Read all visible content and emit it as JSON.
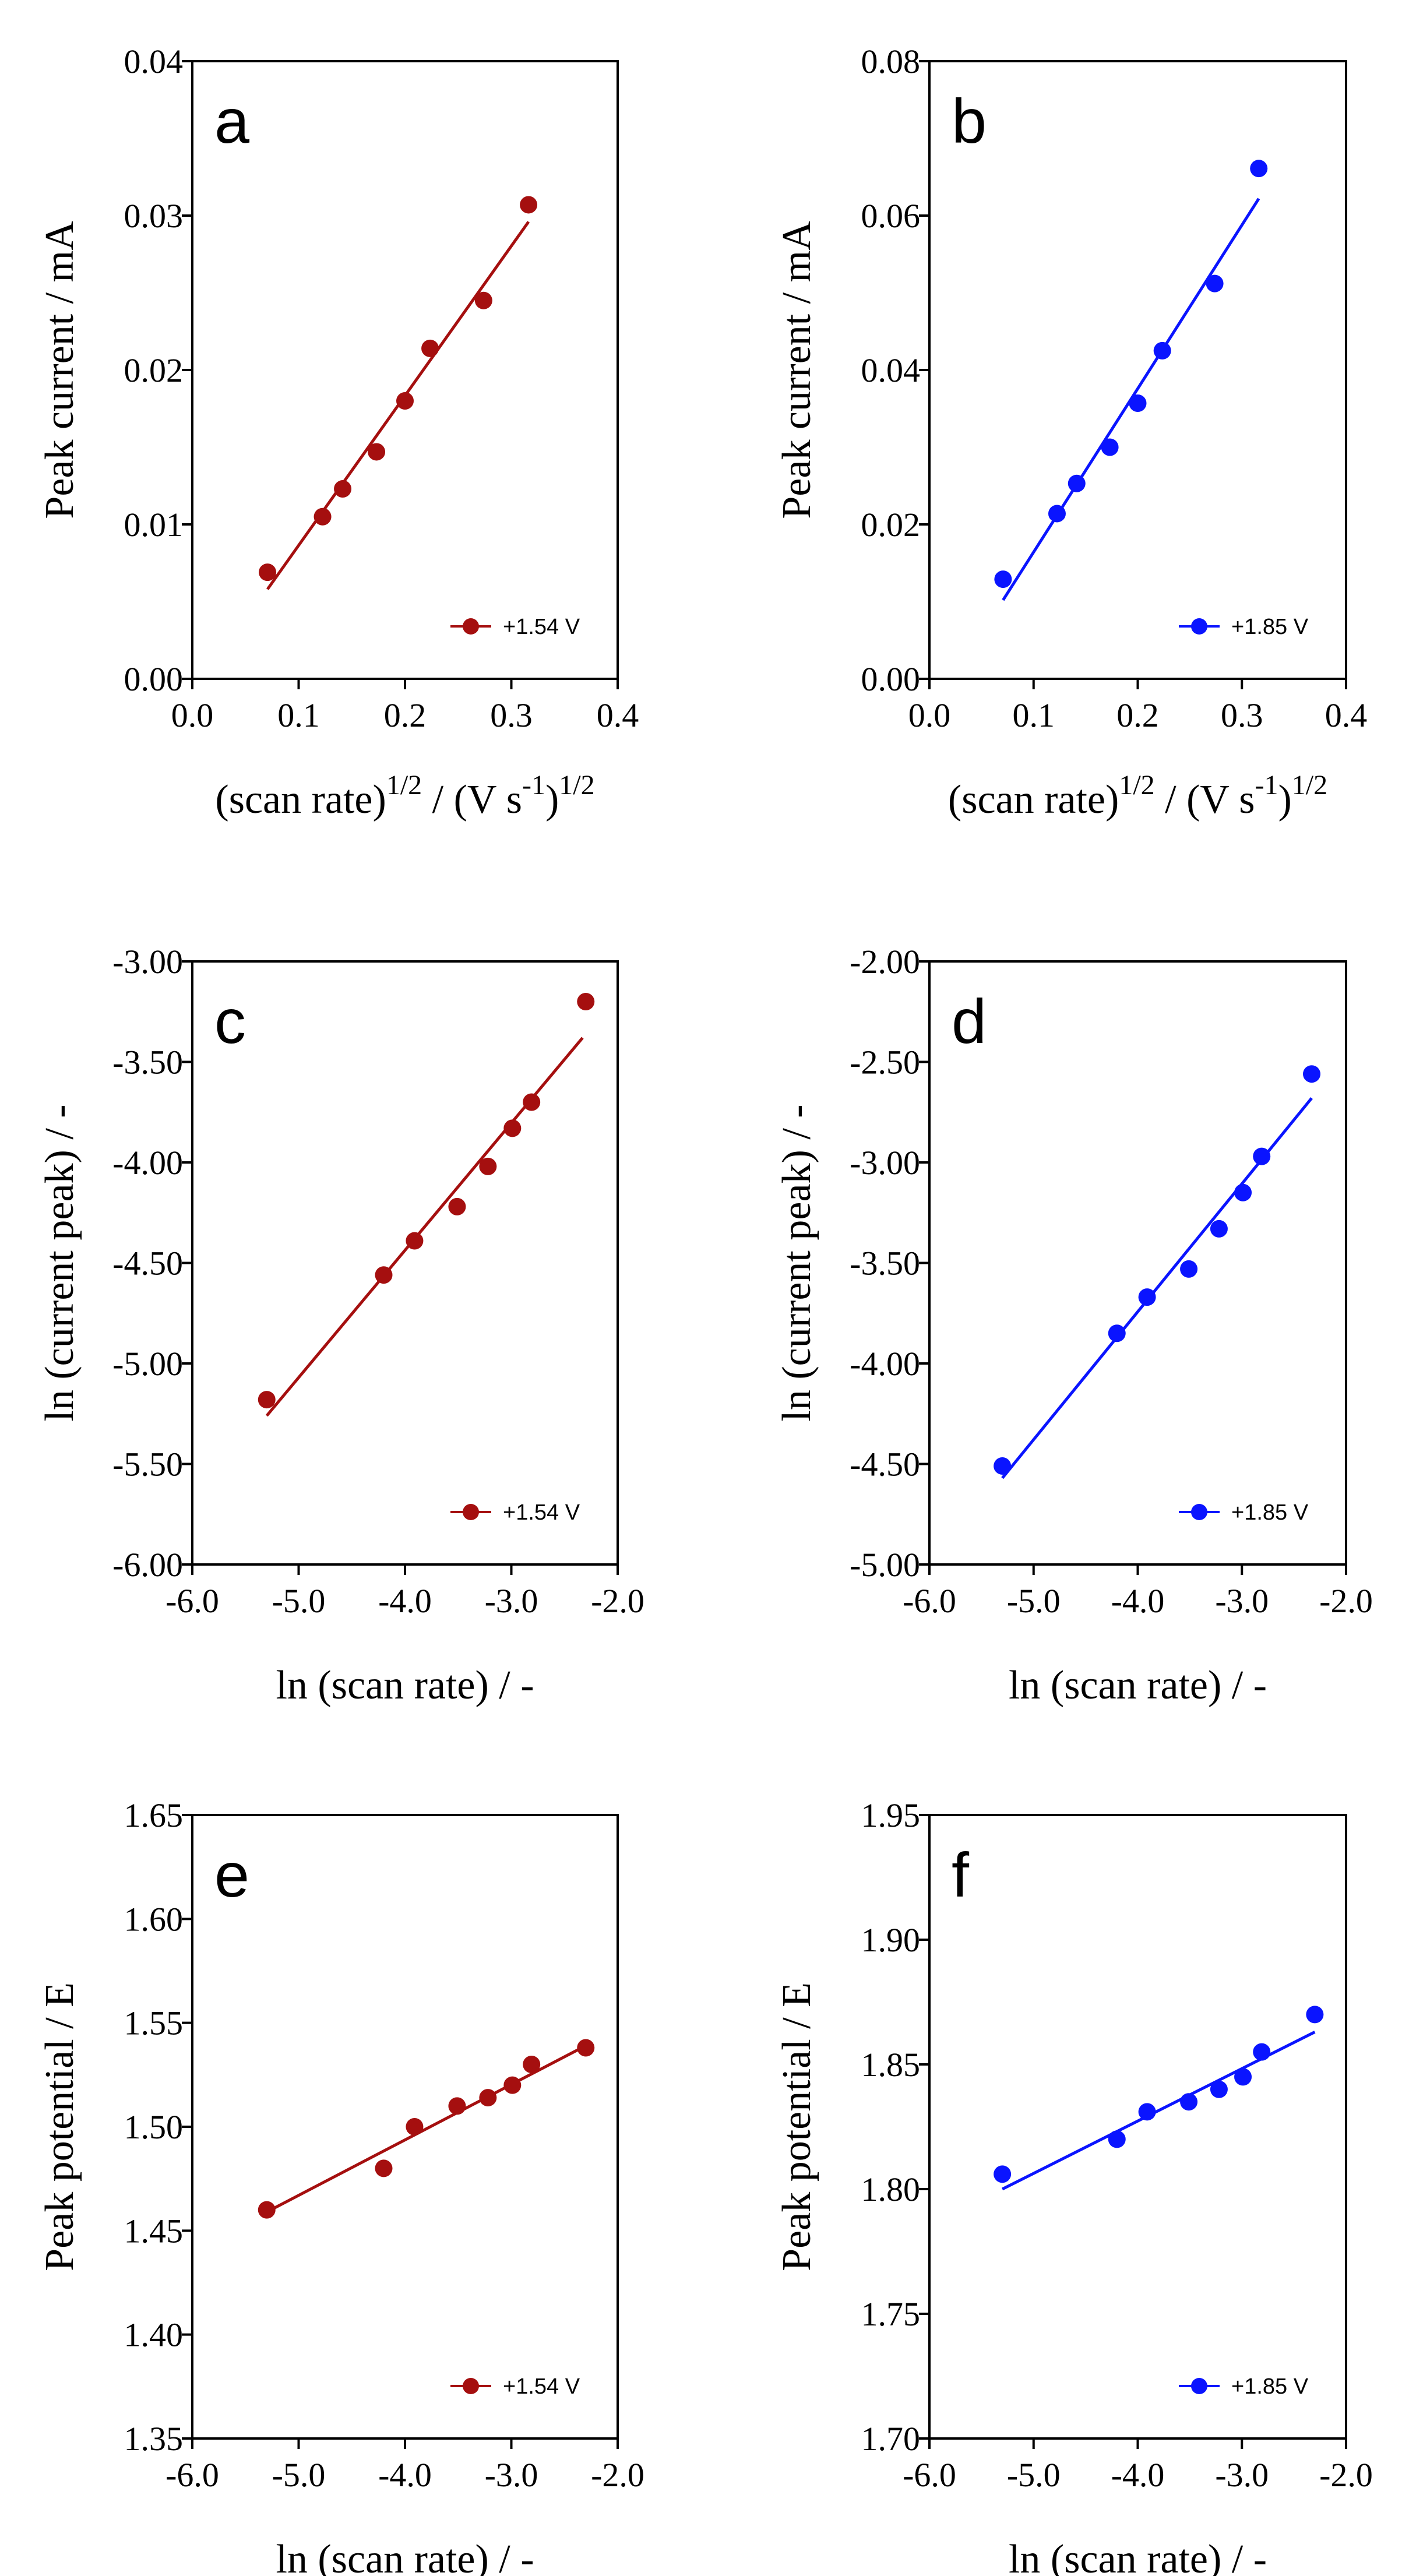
{
  "chart_data": [
    {
      "type": "scatter",
      "panel": "a",
      "xlabel": "(scan rate)",
      "xlabel_sup": "1/2",
      "xlabel_tail": " / (V s",
      "xlabel_tail_sup": "-1",
      "xlabel_end": ")",
      "xlabel_end_sup": "1/2",
      "ylabel": "Peak current / mA",
      "xlim": [
        0.0,
        0.4
      ],
      "ylim": [
        0.0,
        0.04
      ],
      "xticks": [
        "0.0",
        "0.1",
        "0.2",
        "0.3",
        "0.4"
      ],
      "yticks": [
        "0.00",
        "0.01",
        "0.02",
        "0.03",
        "0.04"
      ],
      "series": [
        {
          "name": "+1.54 V",
          "color": "#a50f0f",
          "x": [
            0.0707,
            0.1225,
            0.1414,
            0.1732,
            0.2,
            0.2236,
            0.2739,
            0.3162
          ],
          "y": [
            0.0069,
            0.0105,
            0.0123,
            0.0147,
            0.018,
            0.0214,
            0.0245,
            0.0307
          ],
          "fit": [
            [
              0.0707,
              0.0058
            ],
            [
              0.3162,
              0.0296
            ]
          ]
        }
      ],
      "legend_position": "bottom-right"
    },
    {
      "type": "scatter",
      "panel": "b",
      "xlabel": "(scan rate)",
      "xlabel_sup": "1/2",
      "xlabel_tail": " / (V s",
      "xlabel_tail_sup": "-1",
      "xlabel_end": ")",
      "xlabel_end_sup": "1/2",
      "ylabel": "Peak current / mA",
      "xlim": [
        0.0,
        0.4
      ],
      "ylim": [
        0.0,
        0.08
      ],
      "xticks": [
        "0.0",
        "0.1",
        "0.2",
        "0.3",
        "0.4"
      ],
      "yticks": [
        "0.00",
        "0.02",
        "0.04",
        "0.06",
        "0.08"
      ],
      "series": [
        {
          "name": "+1.85 V",
          "color": "#0a14ff",
          "x": [
            0.0707,
            0.1225,
            0.1414,
            0.1732,
            0.2,
            0.2236,
            0.2739,
            0.3162
          ],
          "y": [
            0.0129,
            0.0214,
            0.0253,
            0.03,
            0.0357,
            0.0425,
            0.0512,
            0.0661
          ],
          "fit": [
            [
              0.0707,
              0.0102
            ],
            [
              0.3162,
              0.0622
            ]
          ]
        }
      ],
      "legend_position": "bottom-right"
    },
    {
      "type": "scatter",
      "panel": "c",
      "xlabel": "ln (scan rate) / -",
      "ylabel": "ln (current peak) / -",
      "xlim": [
        -6.0,
        -2.0
      ],
      "ylim": [
        -6.0,
        -3.0
      ],
      "xticks": [
        "-6.0",
        "-5.0",
        "-4.0",
        "-3.0",
        "-2.0"
      ],
      "yticks": [
        "-6.00",
        "-5.50",
        "-5.00",
        "-4.50",
        "-4.00",
        "-3.50",
        "-3.00"
      ],
      "series": [
        {
          "name": "+1.54 V",
          "color": "#a50f0f",
          "x": [
            -5.3,
            -4.2,
            -3.91,
            -3.51,
            -3.22,
            -2.99,
            -2.81,
            -2.3
          ],
          "y": [
            -5.18,
            -4.56,
            -4.39,
            -4.22,
            -4.02,
            -3.83,
            -3.7,
            -3.2
          ],
          "fit": [
            [
              -5.3,
              -5.26
            ],
            [
              -2.33,
              -3.38
            ]
          ]
        }
      ],
      "legend_position": "bottom-right"
    },
    {
      "type": "scatter",
      "panel": "d",
      "xlabel": "ln (scan rate) / -",
      "ylabel": "ln (current peak) / -",
      "xlim": [
        -6.0,
        -2.0
      ],
      "ylim": [
        -5.0,
        -2.0
      ],
      "xticks": [
        "-6.0",
        "-5.0",
        "-4.0",
        "-3.0",
        "-2.0"
      ],
      "yticks": [
        "-5.00",
        "-4.50",
        "-4.00",
        "-3.50",
        "-3.00",
        "-2.50",
        "-2.00"
      ],
      "series": [
        {
          "name": "+1.85 V",
          "color": "#0a14ff",
          "x": [
            -5.3,
            -4.2,
            -3.91,
            -3.51,
            -3.22,
            -2.99,
            -2.81,
            -2.33
          ],
          "y": [
            -4.51,
            -3.85,
            -3.67,
            -3.53,
            -3.33,
            -3.15,
            -2.97,
            -2.56
          ],
          "fit": [
            [
              -5.3,
              -4.57
            ],
            [
              -2.33,
              -2.68
            ]
          ]
        }
      ],
      "legend_position": "bottom-right"
    },
    {
      "type": "scatter",
      "panel": "e",
      "xlabel": "ln (scan rate) / -",
      "ylabel": "Peak potential / E",
      "xlim": [
        -6.0,
        -2.0
      ],
      "ylim": [
        1.35,
        1.65
      ],
      "xticks": [
        "-6.0",
        "-5.0",
        "-4.0",
        "-3.0",
        "-2.0"
      ],
      "yticks": [
        "1.35",
        "1.40",
        "1.45",
        "1.50",
        "1.55",
        "1.60",
        "1.65"
      ],
      "series": [
        {
          "name": "+1.54 V",
          "color": "#a50f0f",
          "x": [
            -5.3,
            -4.2,
            -3.91,
            -3.51,
            -3.22,
            -2.99,
            -2.81,
            -2.3
          ],
          "y": [
            1.46,
            1.48,
            1.5,
            1.51,
            1.514,
            1.52,
            1.53,
            1.538
          ],
          "fit": [
            [
              -5.3,
              1.459
            ],
            [
              -2.3,
              1.539
            ]
          ]
        }
      ],
      "legend_position": "bottom-right"
    },
    {
      "type": "scatter",
      "panel": "f",
      "xlabel": "ln (scan rate) / -",
      "ylabel": "Peak potential / E",
      "xlim": [
        -6.0,
        -2.0
      ],
      "ylim": [
        1.7,
        1.95
      ],
      "xticks": [
        "-6.0",
        "-5.0",
        "-4.0",
        "-3.0",
        "-2.0"
      ],
      "yticks": [
        "1.70",
        "1.75",
        "1.80",
        "1.85",
        "1.90",
        "1.95"
      ],
      "series": [
        {
          "name": "+1.85 V",
          "color": "#0a14ff",
          "x": [
            -5.3,
            -4.2,
            -3.91,
            -3.51,
            -3.22,
            -2.99,
            -2.81,
            -2.3
          ],
          "y": [
            1.806,
            1.82,
            1.831,
            1.835,
            1.84,
            1.845,
            1.855,
            1.87
          ],
          "fit": [
            [
              -5.3,
              1.8
            ],
            [
              -2.3,
              1.863
            ]
          ]
        }
      ],
      "legend_position": "bottom-right"
    }
  ]
}
